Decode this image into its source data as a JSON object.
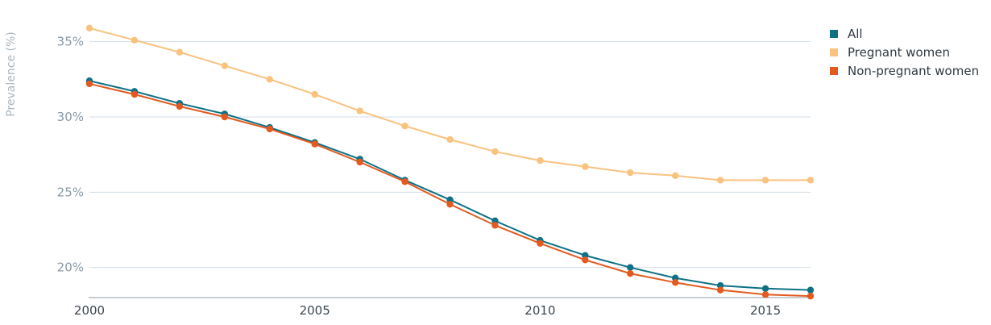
{
  "chart_data": {
    "type": "line",
    "ylabel": "Prevalence (%)",
    "xlabel": "",
    "title": "",
    "x": [
      2000,
      2001,
      2002,
      2003,
      2004,
      2005,
      2006,
      2007,
      2008,
      2009,
      2010,
      2011,
      2012,
      2013,
      2014,
      2015,
      2016
    ],
    "x_ticks": [
      2000,
      2005,
      2010,
      2015
    ],
    "x_tick_labels": [
      "2000",
      "2005",
      "2010",
      "2015"
    ],
    "ylim": [
      18.0,
      36.0
    ],
    "y_ticks": [
      20,
      25,
      30,
      35
    ],
    "y_tick_labels": [
      "20%",
      "25%",
      "30%",
      "35%"
    ],
    "grid": "horizontal",
    "legend_position": "top-right",
    "series": [
      {
        "name": "All",
        "color": "#0f7185",
        "values": [
          32.4,
          31.7,
          30.9,
          30.2,
          29.3,
          28.3,
          27.2,
          25.8,
          24.5,
          23.1,
          21.8,
          20.8,
          20.0,
          19.3,
          18.8,
          18.6,
          18.5
        ]
      },
      {
        "name": "Pregnant women",
        "color": "#f9c27f",
        "values": [
          35.9,
          35.1,
          34.3,
          33.4,
          32.5,
          31.5,
          30.4,
          29.4,
          28.5,
          27.7,
          27.1,
          26.7,
          26.3,
          26.1,
          25.8,
          25.8,
          25.8
        ]
      },
      {
        "name": "Non-pregnant women",
        "color": "#e35a20",
        "values": [
          32.2,
          31.5,
          30.7,
          30.0,
          29.2,
          28.2,
          27.0,
          25.7,
          24.2,
          22.8,
          21.6,
          20.5,
          19.6,
          19.0,
          18.5,
          18.2,
          18.1
        ]
      }
    ]
  }
}
